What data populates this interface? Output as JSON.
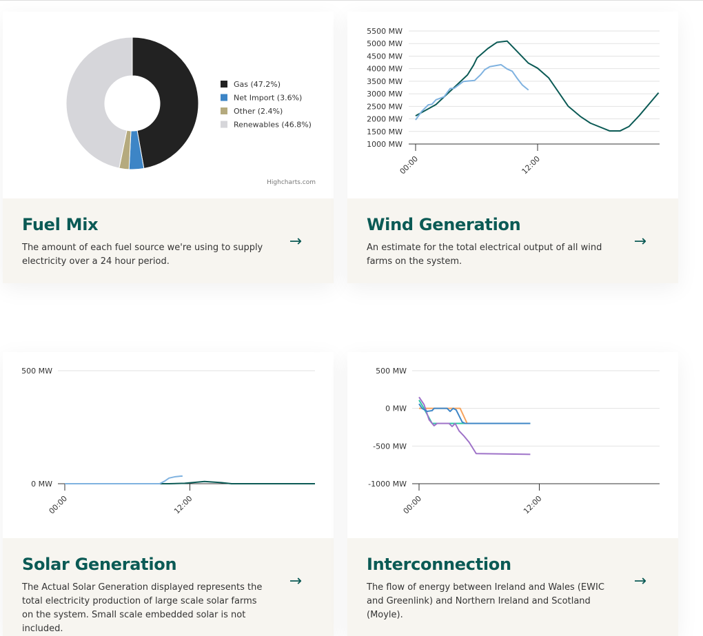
{
  "cards": [
    {
      "title": "Fuel Mix",
      "description": "The amount of each fuel source we're using to supply electricity over a 24 hour period.",
      "credits": "Highcharts.com"
    },
    {
      "title": "Wind Generation",
      "description": "An estimate for the total electrical output of all wind farms on the system."
    },
    {
      "title": "Solar Generation",
      "description": "The Actual Solar Generation displayed represents the total electricity production of large scale solar farms on the system. Small scale embedded solar is not included."
    },
    {
      "title": "Interconnection",
      "description": "The flow of energy between Ireland and Wales (EWIC and Greenlink) and Northern Ireland and Scotland (Moyle)."
    }
  ],
  "chart_data": [
    {
      "type": "pie",
      "title": "Fuel Mix",
      "slices": [
        {
          "label": "Gas (47.2%)",
          "value": 47.2,
          "color": "#222222"
        },
        {
          "label": "Net Import (3.6%)",
          "value": 3.6,
          "color": "#3d85c6"
        },
        {
          "label": "Other (2.4%)",
          "value": 2.4,
          "color": "#b5aa7e"
        },
        {
          "label": "Renewables (46.8%)",
          "value": 46.8,
          "color": "#d6d6da"
        }
      ]
    },
    {
      "type": "line",
      "title": "Wind Generation",
      "ylim": [
        1000,
        5500
      ],
      "yticks": [
        1000,
        1500,
        2000,
        2500,
        3000,
        3500,
        4000,
        4500,
        5000,
        5500
      ],
      "yunit": " MW",
      "xlim": [
        0,
        24
      ],
      "xticks": [
        {
          "v": 0,
          "label": "00:00"
        },
        {
          "v": 12,
          "label": "12:00"
        }
      ],
      "series": [
        {
          "color": "#0b5a55",
          "x": [
            0,
            2,
            5.1,
            5.7,
            6.05,
            7.1,
            8,
            9,
            11.1,
            12,
            13.1,
            15,
            16.2,
            17.2,
            19.1,
            20.1,
            21,
            22,
            23.9
          ],
          "y": [
            2120,
            2570,
            3750,
            4140,
            4430,
            4800,
            5050,
            5100,
            4220,
            4020,
            3630,
            2510,
            2100,
            1830,
            1520,
            1520,
            1700,
            2130,
            3040
          ]
        },
        {
          "color": "#7fb2e0",
          "x": [
            0,
            0.6,
            1.25,
            1.6,
            2,
            2.8,
            3.4,
            3.8,
            4.7,
            5.8,
            6.4,
            6.8,
            7.3,
            8.4,
            9,
            9.5,
            10,
            10.5,
            11.1
          ],
          "y": [
            1960,
            2300,
            2560,
            2580,
            2760,
            2880,
            3210,
            3220,
            3490,
            3530,
            3760,
            3960,
            4080,
            4160,
            3990,
            3900,
            3610,
            3350,
            3150
          ]
        }
      ]
    },
    {
      "type": "line",
      "title": "Solar Generation",
      "ylim": [
        0,
        500
      ],
      "yticks": [
        0,
        500
      ],
      "yunit": " MW",
      "xlim": [
        0,
        24
      ],
      "xticks": [
        {
          "v": 0,
          "label": "00:00"
        },
        {
          "v": 12,
          "label": "12:00"
        }
      ],
      "series": [
        {
          "color": "#0b5a55",
          "x": [
            0,
            10,
            11.5,
            13.4,
            15,
            16,
            24
          ],
          "y": [
            0,
            0,
            2,
            10,
            5,
            0,
            0
          ]
        },
        {
          "color": "#7fb2e0",
          "x": [
            0,
            9.1,
            9.6,
            10,
            10.6,
            11.2,
            11.3
          ],
          "y": [
            0,
            0,
            12,
            25,
            31,
            34,
            33
          ]
        }
      ]
    },
    {
      "type": "line",
      "title": "Interconnection",
      "ylim": [
        -1000,
        500
      ],
      "yticks": [
        -1000,
        -500,
        0,
        500
      ],
      "yunit": " MW",
      "xlim": [
        0,
        24
      ],
      "xticks": [
        {
          "v": 0,
          "label": "00:00"
        },
        {
          "v": 12,
          "label": "12:00"
        }
      ],
      "series": [
        {
          "color": "#f7a35c",
          "x": [
            0,
            4.1,
            4.8,
            11.1
          ],
          "y": [
            0,
            0,
            -200,
            -200
          ]
        },
        {
          "color": "#2ec4a6",
          "x": [
            0,
            0.4,
            1.3,
            11.1
          ],
          "y": [
            110,
            20,
            -200,
            -200
          ]
        },
        {
          "color": "#9e72c8",
          "x": [
            0,
            0.5,
            1,
            1.5,
            1.8,
            3,
            3.3,
            3.6,
            4,
            4.5,
            5,
            5.7,
            11.1
          ],
          "y": [
            150,
            50,
            -150,
            -230,
            -200,
            -200,
            -240,
            -200,
            -300,
            -370,
            -450,
            -600,
            -610
          ]
        },
        {
          "color": "#3d85c6",
          "x": [
            0,
            0.3,
            0.8,
            1.3,
            1.5,
            2.8,
            3.1,
            3.4,
            3.7,
            4.3,
            4.6,
            11.1
          ],
          "y": [
            60,
            0,
            -40,
            -30,
            0,
            0,
            -40,
            0,
            -20,
            -180,
            -200,
            -200
          ]
        }
      ]
    }
  ]
}
